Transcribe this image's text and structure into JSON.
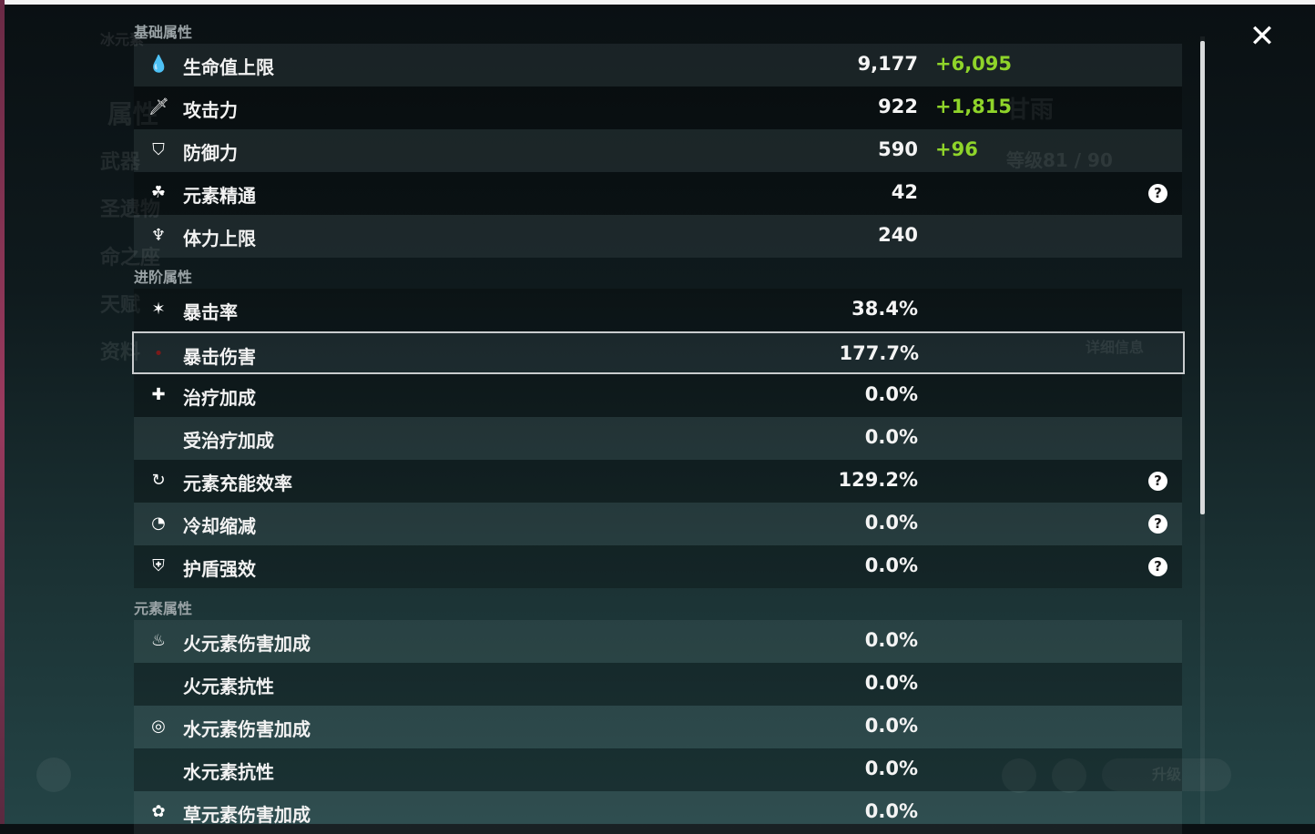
{
  "background": {
    "character_name": "甘雨",
    "level": "等级81 / 90",
    "nav": [
      "属性",
      "武器",
      "圣遗物",
      "命之座",
      "天赋",
      "资料"
    ],
    "element_label": "冰元素",
    "detail_button": "详细信息",
    "upgrade_button": "升级"
  },
  "close_icon": "close-x-icon",
  "colors": {
    "bonus": "#8fd42a",
    "selected_border": "#c9ccce"
  },
  "sections": [
    {
      "title": "基础属性",
      "rows": [
        {
          "icon": "hp-drop-icon",
          "label": "生命值上限",
          "value": "9,177",
          "bonus": "+6,095"
        },
        {
          "icon": "attack-sword-icon",
          "label": "攻击力",
          "value": "922",
          "bonus": "+1,815"
        },
        {
          "icon": "defense-shield-icon",
          "label": "防御力",
          "value": "590",
          "bonus": "+96"
        },
        {
          "icon": "elemental-mastery-icon",
          "label": "元素精通",
          "value": "42",
          "help": true
        },
        {
          "icon": "stamina-icon",
          "label": "体力上限",
          "value": "240"
        }
      ]
    },
    {
      "title": "进阶属性",
      "rows": [
        {
          "icon": "crit-rate-icon",
          "label": "暴击率",
          "value": "38.4%"
        },
        {
          "icon": "crit-damage-icon",
          "label": "暴击伤害",
          "value": "177.7%",
          "selected": true
        },
        {
          "icon": "healing-cross-icon",
          "label": "治疗加成",
          "value": "0.0%"
        },
        {
          "icon": "",
          "label": "受治疗加成",
          "value": "0.0%"
        },
        {
          "icon": "energy-recharge-icon",
          "label": "元素充能效率",
          "value": "129.2%",
          "help": true
        },
        {
          "icon": "cooldown-icon",
          "label": "冷却缩减",
          "value": "0.0%",
          "help": true
        },
        {
          "icon": "shield-strength-icon",
          "label": "护盾强效",
          "value": "0.0%",
          "help": true
        }
      ]
    },
    {
      "title": "元素属性",
      "rows": [
        {
          "icon": "pyro-icon",
          "label": "火元素伤害加成",
          "value": "0.0%"
        },
        {
          "icon": "",
          "label": "火元素抗性",
          "value": "0.0%"
        },
        {
          "icon": "hydro-icon",
          "label": "水元素伤害加成",
          "value": "0.0%"
        },
        {
          "icon": "",
          "label": "水元素抗性",
          "value": "0.0%"
        },
        {
          "icon": "dendro-icon",
          "label": "草元素伤害加成",
          "value": "0.0%"
        }
      ]
    }
  ]
}
